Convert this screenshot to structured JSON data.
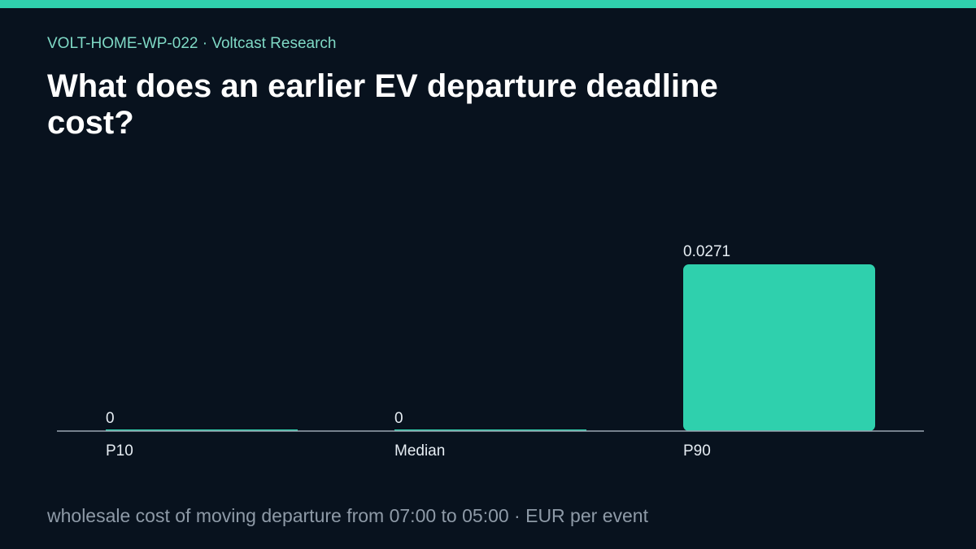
{
  "header": {
    "kicker": "VOLT-HOME-WP-022 · Voltcast Research"
  },
  "colors": {
    "accent": "#2fd0ad",
    "background": "#08121e",
    "kicker_text": "#7fd9c5",
    "caption_text": "#8e9aa7",
    "label_text": "#e6edf3",
    "baseline": "#9aa6b2"
  },
  "chart_data": {
    "type": "bar",
    "title": "What does an earlier EV departure deadline cost?",
    "subtitle": "wholesale cost of moving departure from 07:00 to 05:00 · EUR per event",
    "categories": [
      "P10",
      "Median",
      "P90"
    ],
    "values": [
      0,
      0,
      0.0271
    ],
    "value_labels": [
      "0",
      "0",
      "0.0271"
    ],
    "ylim": [
      0,
      0.0271
    ],
    "grid": false,
    "legend": "none"
  }
}
